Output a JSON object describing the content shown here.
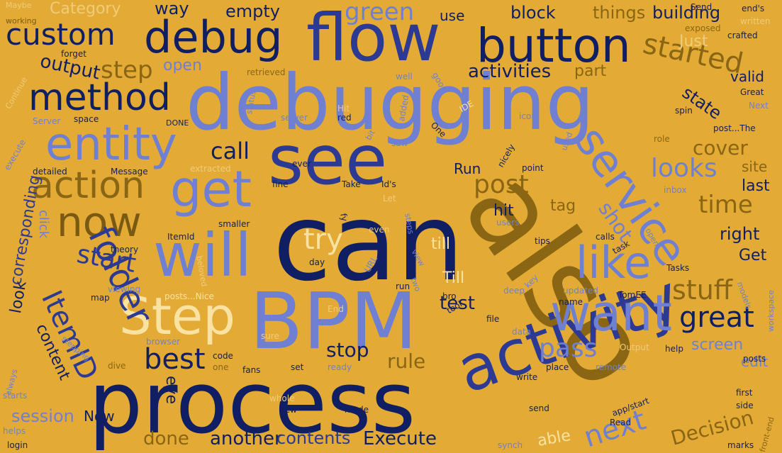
{
  "background": "#E3AB35",
  "palette": {
    "navy": "#101E63",
    "blue": "#2D3A93",
    "periwinkle": "#6F80D3",
    "brown": "#7A5A12",
    "olive": "#8A6614",
    "cream": "#F9E2A2",
    "tan": "#EFCB7A"
  },
  "words": {
    "can": "can",
    "also": "also",
    "debugging": "debugging",
    "process": "process",
    "bpm": "BPM",
    "see": "see",
    "flow": "flow",
    "activity": "activity",
    "debug": "debug",
    "button": "button",
    "will": "will",
    "service": "service",
    "step": "Step",
    "want": "want",
    "get": "get",
    "entity": "entity",
    "now": "now",
    "method": "method",
    "action": "action",
    "like": "like",
    "folder": "folder",
    "itemid": "ItemID",
    "custom": "custom",
    "great": "great",
    "best": "best",
    "stuff": "stuff",
    "started": "started",
    "next": "next",
    "pass": "pass",
    "try": "try",
    "looks": "looks",
    "activities": "activities",
    "time": "time",
    "start": "start",
    "post": "post",
    "call": "call",
    "green": "green",
    "step2": "step",
    "output": "output",
    "cover": "cover",
    "state": "state",
    "shot": "shot",
    "test": "test",
    "stop": "stop",
    "rule": "rule",
    "execute": "Execute",
    "another": "another",
    "done": "done",
    "contents": "contents",
    "decision": "Decision",
    "session": "session",
    "content": "content",
    "corresponding": "corresponding",
    "things": "things",
    "building": "building",
    "block": "block",
    "empty": "empty",
    "way": "way",
    "category": "Category",
    "run": "Run",
    "hit": "hit",
    "tag": "tag",
    "right": "right",
    "get2": "Get",
    "last": "last",
    "site": "site",
    "valid": "valid",
    "part": "part",
    "just": "Just",
    "open": "open",
    "use": "use",
    "now2": "Now",
    "screen": "screen",
    "edit": "edit",
    "look": "look",
    "till": "Till",
    "till2": "till",
    "able": "able",
    "eye": "eye",
    "click": "click",
    "maybe": "Maybe",
    "working": "working",
    "forget": "forget",
    "continue": "Continue",
    "server": "Server",
    "execute2": "execute",
    "detailed": "detailed",
    "message": "Message",
    "extracted": "extracted",
    "ever": "ever",
    "fine": "fine",
    "take": "Take",
    "ids": "Id's",
    "let": "Let",
    "well": "well",
    "good": "good",
    "retrieved": "retrieved",
    "added": "added",
    "status": "status",
    "server2": "server",
    "hit2": "Hit",
    "red": "red",
    "bit": "bit",
    "saw": "saw",
    "one": "One",
    "ide": "IDE",
    "icon": "icon",
    "used": "used",
    "nicely": "nicely",
    "point": "point",
    "role": "role",
    "spin": "spin",
    "next2": "Next",
    "great2": "Great",
    "post_the": "post...The",
    "crafted": "crafted",
    "exposed": "exposed",
    "written": "written",
    "ends": "end's",
    "send": "Send",
    "space": "space",
    "done2": "DONE",
    "itemid2": "ItemId",
    "smaller": "smaller",
    "fy": "fy",
    "even": "even",
    "steps": "steps",
    "users": "users",
    "tips": "tips",
    "calls": "calls",
    "task": "task",
    "open2": "open",
    "theory": "theory",
    "beloved": "beloved",
    "day": "day",
    "url": "URL",
    "view": "view",
    "two": "two",
    "key": "key",
    "tasks": "Tasks",
    "inbox": "inbox",
    "workspace": "workspace",
    "models": "models",
    "viewing": "viewing",
    "posts_nice": "posts...Nice",
    "map": "map",
    "run2": "run",
    "bro": "bro",
    "tool": "tool",
    "deep": "deep",
    "updated": "updated",
    "tomee": "TomEE",
    "name": "name",
    "stepping": "stepping",
    "end": "End",
    "file": "file",
    "data": "data",
    "browser": "browser",
    "sure": "sure",
    "output2": "Output",
    "help": "help",
    "posts": "posts",
    "code": "code",
    "dive": "dive",
    "one2": "one",
    "fans": "fans",
    "set": "set",
    "ready": "ready",
    "remote": "remote",
    "place": "place",
    "write": "write",
    "always": "always",
    "starts": "starts",
    "whole": "whole",
    "new": "new",
    "mode": "mode",
    "send2": "send",
    "first": "first",
    "side": "side",
    "helps": "helps",
    "login": "login",
    "read": "Read",
    "app_start": "app/start",
    "synch": "synch",
    "marks": "marks",
    "frontend": "front-end"
  }
}
